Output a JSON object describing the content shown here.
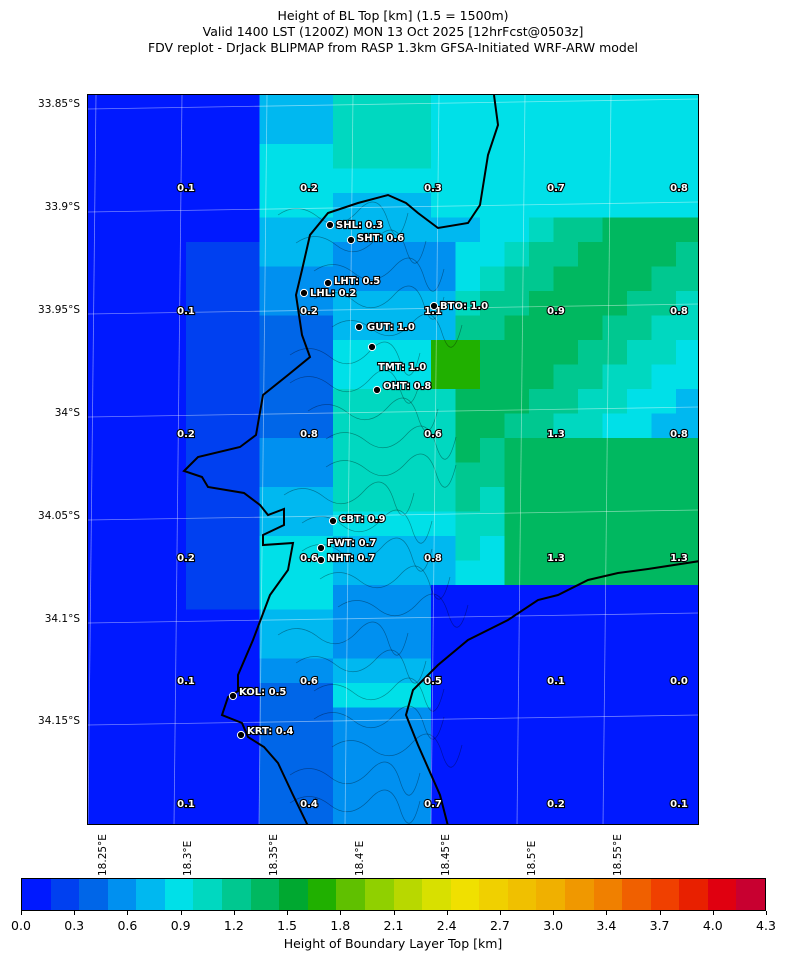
{
  "title": {
    "line1": "Height of BL Top [km] (1.5 = 1500m)",
    "line2": "Valid 1400 LST (1200Z) MON 13 Oct 2025 [12hrFcst@0503z]",
    "line3": "FDV replot - DrJack BLIPMAP from RASP 1.3km GFSA-Initiated WRF-ARW model"
  },
  "axes": {
    "lat_labels": [
      "33.85°S",
      "33.9°S",
      "33.95°S",
      "34°S",
      "34.05°S",
      "34.1°S",
      "34.15°S"
    ],
    "lon_labels": [
      "18.25°E",
      "18.3°E",
      "18.35°E",
      "18.4°E",
      "18.45°E",
      "18.5°E",
      "18.55°E"
    ]
  },
  "stations": [
    {
      "label": "SHL: 0.3"
    },
    {
      "label": "SHT: 0.6"
    },
    {
      "label": "LHT: 0.5"
    },
    {
      "label": "LHL: 0.2"
    },
    {
      "label": "BTO: 1.0"
    },
    {
      "label": "GUT: 1.0"
    },
    {
      "label": "TMT: 1.0"
    },
    {
      "label": "OHT: 0.8"
    },
    {
      "label": "CBT: 0.9"
    },
    {
      "label": "FWT: 0.7"
    },
    {
      "label": "NHT: 0.7"
    },
    {
      "label": "KOL: 0.5"
    },
    {
      "label": "KRT: 0.4"
    }
  ],
  "grid_values": [
    [
      "0.1",
      "0.2",
      "0.3",
      "0.7",
      "0.8"
    ],
    [
      "0.1",
      "0.2",
      "1.1",
      "0.9",
      "0.8"
    ],
    [
      "0.2",
      "0.8",
      "0.6",
      "1.3",
      "0.8"
    ],
    [
      "0.2",
      "0.6",
      "0.8",
      "1.3",
      "1.3"
    ],
    [
      "0.1",
      "0.6",
      "0.5",
      "0.1",
      "0.0"
    ],
    [
      "0.1",
      "0.4",
      "0.7",
      "0.2",
      "0.1"
    ]
  ],
  "colorbar": {
    "label": "Height of Boundary Layer Top [km]",
    "tick_labels": [
      "0.0",
      "0.3",
      "0.6",
      "0.9",
      "1.2",
      "1.5",
      "1.8",
      "2.1",
      "2.4",
      "2.7",
      "3.0",
      "3.4",
      "3.7",
      "4.0",
      "4.3"
    ],
    "colors": [
      "#0019ff",
      "#0040f0",
      "#0066e8",
      "#0090f0",
      "#00b8f0",
      "#00e0e8",
      "#00d8c0",
      "#00c890",
      "#00b860",
      "#00a830",
      "#20b000",
      "#60c000",
      "#90d000",
      "#b8d800",
      "#d8e000",
      "#f0e000",
      "#f0d000",
      "#f0c000",
      "#f0b000",
      "#f09800",
      "#f08000",
      "#f06000",
      "#f04000",
      "#e82000",
      "#e00010",
      "#c80030"
    ]
  },
  "chart_data": {
    "type": "heatmap",
    "title": "Height of BL Top [km] (1.5 = 1500m)",
    "colorbar_label": "Height of Boundary Layer Top [km]",
    "colorbar_range": [
      0.0,
      4.3
    ],
    "value_grid_rows": 6,
    "value_grid_cols": 5,
    "stations": [
      {
        "code": "SHL",
        "value": 0.3
      },
      {
        "code": "SHT",
        "value": 0.6
      },
      {
        "code": "LHT",
        "value": 0.5
      },
      {
        "code": "LHL",
        "value": 0.2
      },
      {
        "code": "BTO",
        "value": 1.0
      },
      {
        "code": "GUT",
        "value": 1.0
      },
      {
        "code": "TMT",
        "value": 1.0
      },
      {
        "code": "OHT",
        "value": 0.8
      },
      {
        "code": "CBT",
        "value": 0.9
      },
      {
        "code": "FWT",
        "value": 0.7
      },
      {
        "code": "NHT",
        "value": 0.7
      },
      {
        "code": "KOL",
        "value": 0.5
      },
      {
        "code": "KRT",
        "value": 0.4
      }
    ]
  }
}
